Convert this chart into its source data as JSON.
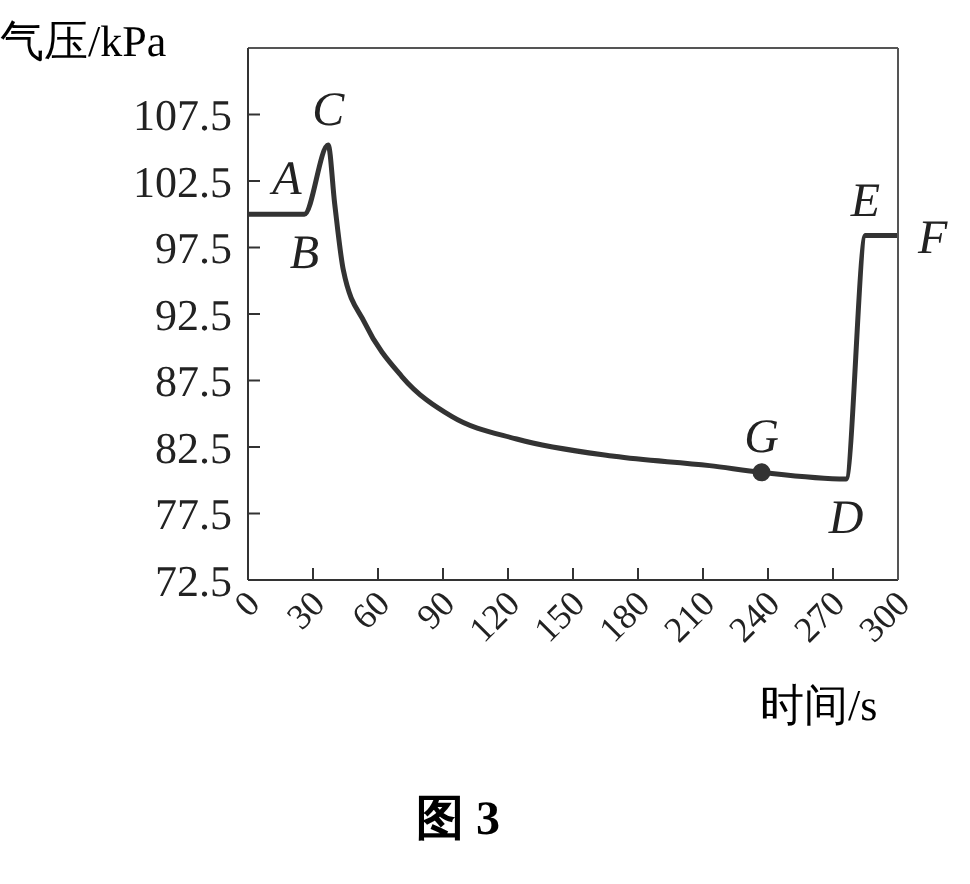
{
  "chart_data": {
    "type": "line",
    "title": "图 3",
    "xlabel": "时间/s",
    "ylabel": "气压/kPa",
    "xlim": [
      0,
      300
    ],
    "xticks": [
      0,
      30,
      60,
      90,
      120,
      150,
      180,
      210,
      240,
      270,
      300
    ],
    "ylim": [
      72.5,
      112.5
    ],
    "yticks": [
      72.5,
      77.5,
      82.5,
      87.5,
      92.5,
      97.5,
      102.5,
      107.5
    ],
    "marker": "none",
    "line_style": "solid",
    "series": [
      {
        "type": "line",
        "color": "#333333",
        "x": [
          0,
          26,
          37,
          40,
          44,
          54,
          71,
          94,
          124,
          169,
          213,
          237,
          276,
          285,
          300
        ],
        "values": [
          100,
          100,
          105.2,
          100.8,
          95.8,
          91.8,
          87.8,
          84.8,
          83.1,
          81.8,
          81.1,
          80.6,
          80.1,
          98.4,
          98.4
        ]
      },
      {
        "type": "scatter",
        "color": "#333333",
        "marker": "circle",
        "x": [
          237
        ],
        "values": [
          80.6
        ]
      }
    ],
    "annotations": [
      {
        "text": "A",
        "x": 18,
        "y": 100
      },
      {
        "text": "B",
        "x": 26,
        "y": 100
      },
      {
        "text": "C",
        "x": 37,
        "y": 105.2
      },
      {
        "text": "D",
        "x": 276,
        "y": 80.1
      },
      {
        "text": "E",
        "x": 285,
        "y": 98.4
      },
      {
        "text": "F",
        "x": 300,
        "y": 98.4
      },
      {
        "text": "G",
        "x": 237,
        "y": 80.6
      }
    ]
  }
}
